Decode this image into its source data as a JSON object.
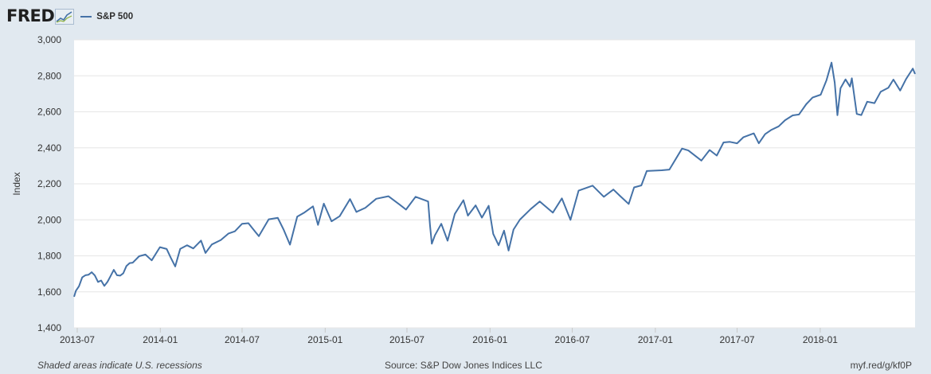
{
  "header": {
    "logo_text": "FRED",
    "logo_icon": "fred-chart-icon",
    "series_label": "S&P 500"
  },
  "footer": {
    "footnote": "Shaded areas indicate U.S. recessions",
    "source": "Source: S&P Dow Jones Indices LLC",
    "short_url": "myf.red/g/kf0P"
  },
  "colors": {
    "background": "#e1e9f0",
    "plot_background": "#ffffff",
    "line": "#4572a7",
    "grid": "#e6e6e6"
  },
  "chart_data": {
    "type": "line",
    "ylabel": "Index",
    "xlabel": "",
    "ylim": [
      1400,
      3000
    ],
    "yticks": [
      "1,400",
      "1,600",
      "1,800",
      "2,000",
      "2,200",
      "2,400",
      "2,600",
      "2,800",
      "3,000"
    ],
    "xticks": [
      "2013-07",
      "2014-01",
      "2014-07",
      "2015-01",
      "2015-07",
      "2016-01",
      "2016-07",
      "2017-01",
      "2017-07",
      "2018-01"
    ],
    "grid": "horizontal",
    "legend": "top-left",
    "series": [
      {
        "name": "S&P 500",
        "x": [
          "2013-06-24",
          "2013-06-28",
          "2013-07-05",
          "2013-07-12",
          "2013-07-19",
          "2013-07-26",
          "2013-08-02",
          "2013-08-09",
          "2013-08-16",
          "2013-08-23",
          "2013-08-30",
          "2013-09-06",
          "2013-09-13",
          "2013-09-20",
          "2013-09-27",
          "2013-10-04",
          "2013-10-11",
          "2013-10-18",
          "2013-10-25",
          "2013-11-01",
          "2013-11-15",
          "2013-11-29",
          "2013-12-13",
          "2013-12-31",
          "2014-01-15",
          "2014-01-24",
          "2014-02-03",
          "2014-02-14",
          "2014-03-01",
          "2014-03-15",
          "2014-04-01",
          "2014-04-11",
          "2014-04-25",
          "2014-05-15",
          "2014-06-01",
          "2014-06-15",
          "2014-07-01",
          "2014-07-15",
          "2014-07-31",
          "2014-08-07",
          "2014-08-29",
          "2014-09-18",
          "2014-10-01",
          "2014-10-15",
          "2014-10-31",
          "2014-11-15",
          "2014-12-05",
          "2014-12-16",
          "2014-12-29",
          "2015-01-15",
          "2015-02-02",
          "2015-02-25",
          "2015-03-11",
          "2015-03-31",
          "2015-04-24",
          "2015-05-21",
          "2015-06-15",
          "2015-06-29",
          "2015-07-20",
          "2015-08-17",
          "2015-08-21",
          "2015-08-25",
          "2015-09-01",
          "2015-09-15",
          "2015-09-29",
          "2015-10-15",
          "2015-11-03",
          "2015-11-13",
          "2015-11-30",
          "2015-12-14",
          "2015-12-29",
          "2016-01-08",
          "2016-01-20",
          "2016-02-01",
          "2016-02-11",
          "2016-02-22",
          "2016-03-07",
          "2016-03-31",
          "2016-04-20",
          "2016-05-19",
          "2016-06-08",
          "2016-06-27",
          "2016-07-15",
          "2016-08-15",
          "2016-09-09",
          "2016-09-30",
          "2016-10-15",
          "2016-11-03",
          "2016-11-15",
          "2016-12-01",
          "2016-12-13",
          "2017-01-15",
          "2017-02-01",
          "2017-03-01",
          "2017-03-15",
          "2017-04-13",
          "2017-05-01",
          "2017-05-17",
          "2017-06-01",
          "2017-06-15",
          "2017-07-01",
          "2017-07-15",
          "2017-08-07",
          "2017-08-18",
          "2017-09-01",
          "2017-09-15",
          "2017-10-01",
          "2017-10-15",
          "2017-11-01",
          "2017-11-15",
          "2017-12-01",
          "2017-12-15",
          "2018-01-02",
          "2018-01-15",
          "2018-01-26",
          "2018-02-02",
          "2018-02-08",
          "2018-02-15",
          "2018-02-26",
          "2018-03-08",
          "2018-03-12",
          "2018-03-23",
          "2018-04-02",
          "2018-04-15",
          "2018-05-01",
          "2018-05-15",
          "2018-06-01",
          "2018-06-12",
          "2018-06-27",
          "2018-07-10",
          "2018-07-25",
          "2018-07-30"
        ],
        "values": [
          1573,
          1606,
          1631,
          1680,
          1692,
          1695,
          1709,
          1691,
          1655,
          1663,
          1633,
          1656,
          1688,
          1722,
          1692,
          1690,
          1703,
          1744,
          1760,
          1762,
          1798,
          1807,
          1775,
          1848,
          1838,
          1790,
          1741,
          1839,
          1859,
          1841,
          1885,
          1816,
          1863,
          1888,
          1924,
          1936,
          1978,
          1981,
          1931,
          1909,
          2003,
          2011,
          1946,
          1862,
          2018,
          2039,
          2075,
          1972,
          2090,
          1992,
          2020,
          2115,
          2044,
          2067,
          2117,
          2131,
          2084,
          2057,
          2128,
          2102,
          1971,
          1867,
          1914,
          1978,
          1884,
          2033,
          2109,
          2023,
          2080,
          2012,
          2078,
          1922,
          1859,
          1940,
          1829,
          1946,
          2001,
          2060,
          2102,
          2040,
          2119,
          2000,
          2162,
          2190,
          2128,
          2168,
          2132,
          2088,
          2180,
          2191,
          2271,
          2275,
          2279,
          2396,
          2385,
          2329,
          2388,
          2357,
          2430,
          2433,
          2425,
          2459,
          2480,
          2425,
          2476,
          2500,
          2519,
          2553,
          2580,
          2585,
          2642,
          2679,
          2695,
          2776,
          2873,
          2762,
          2581,
          2731,
          2780,
          2740,
          2786,
          2588,
          2582,
          2656,
          2648,
          2712,
          2734,
          2779,
          2718,
          2782,
          2840,
          2810
        ]
      }
    ]
  }
}
